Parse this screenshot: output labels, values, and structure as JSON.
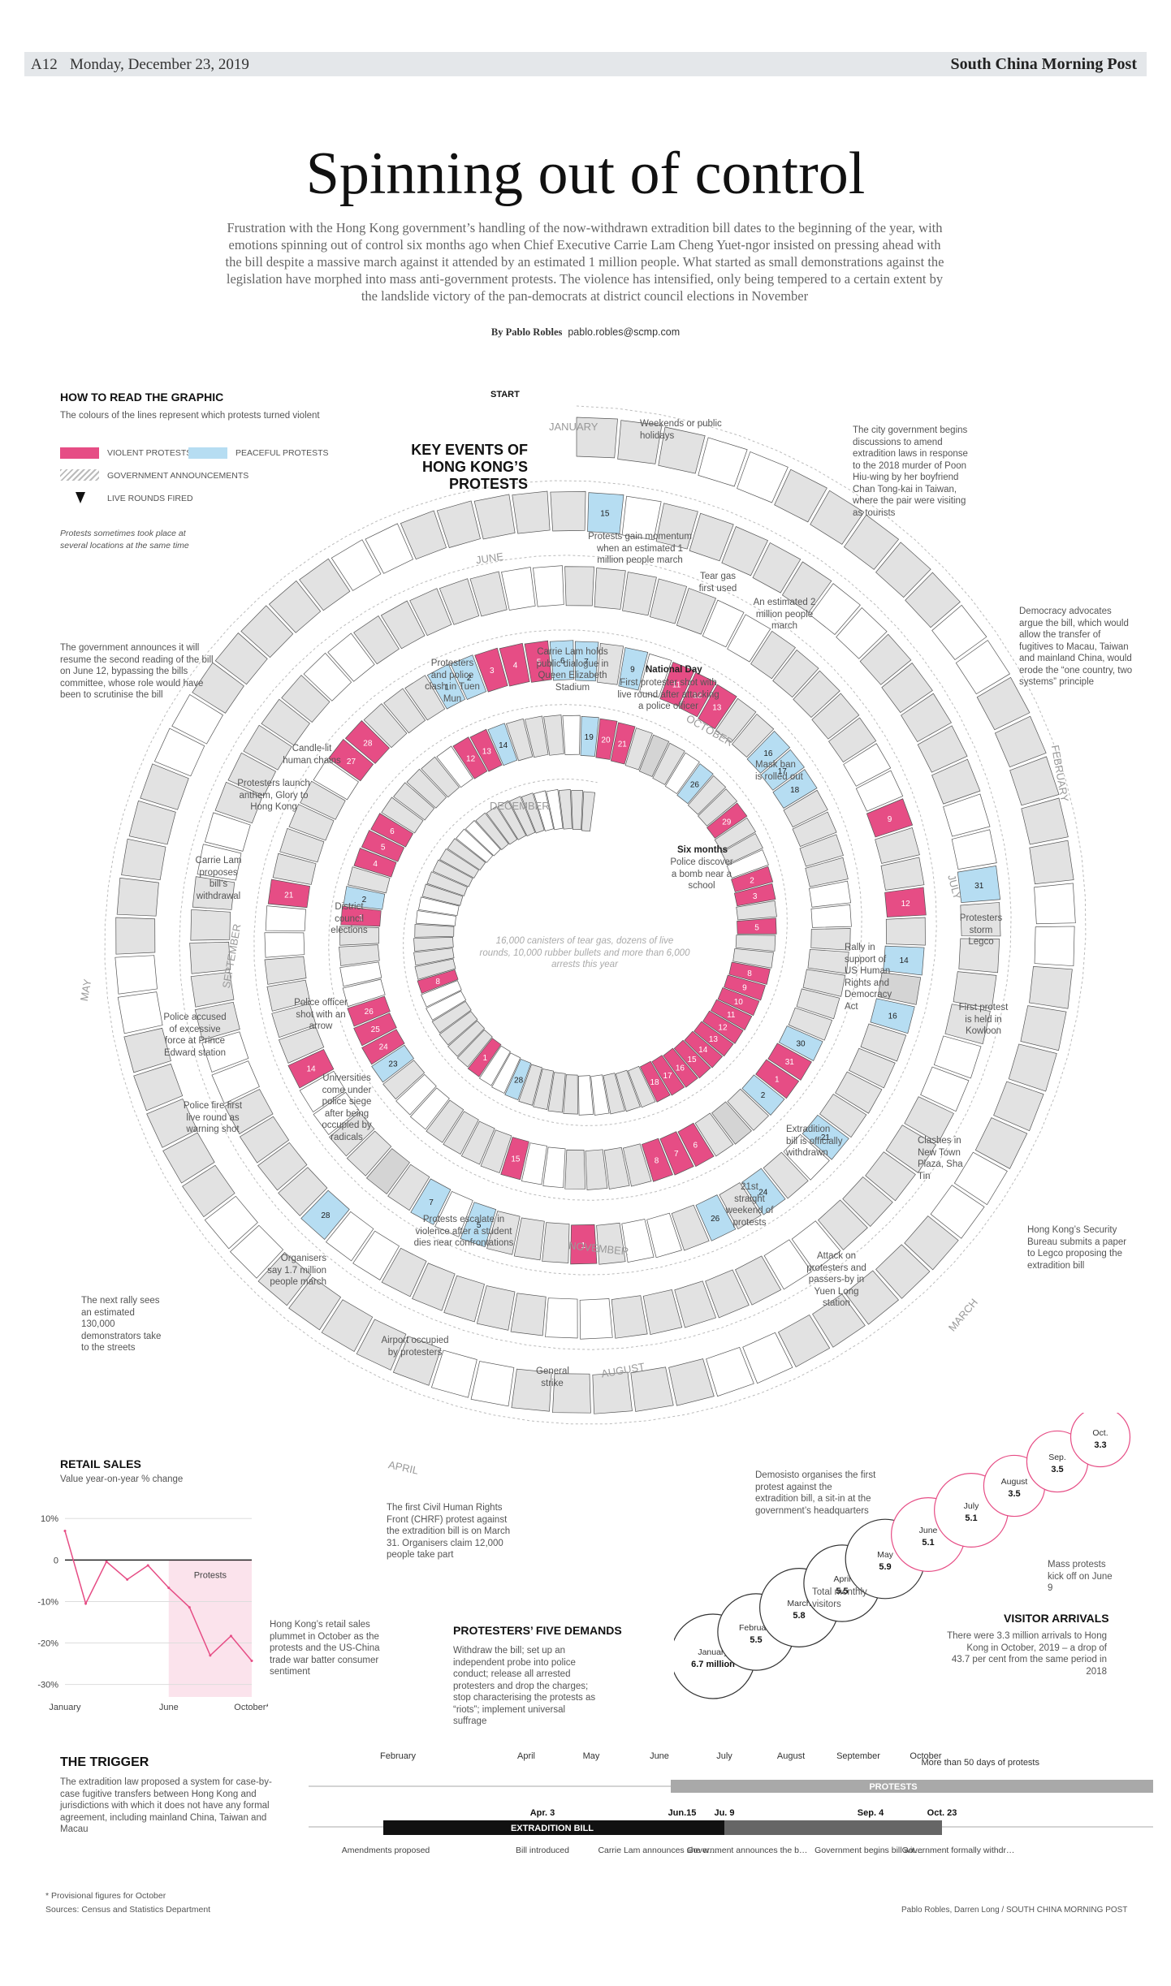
{
  "header": {
    "page": "A12",
    "date": "Monday, December 23, 2019",
    "brand": "South China Morning Post"
  },
  "title": "Spinning out of control",
  "intro": "Frustration with the Hong Kong government’s handling of the now-withdrawn extradition bill dates to the beginning of the year, with emotions spinning out of control six months ago when Chief Executive Carrie Lam Cheng Yuet-ngor insisted on pressing ahead with the bill despite a massive march against it attended by an estimated 1 million people. What started as small demonstrations against the legislation have morphed into mass anti-government protests. The violence has intensified, only being tempered to a certain extent by the landslide victory of the pan-democrats at district council elections in November",
  "byline": {
    "author": "By Pablo Robles",
    "email": "pablo.robles@scmp.com"
  },
  "legend": {
    "heading": "HOW TO READ THE GRAPHIC",
    "subheading": "The colours of the lines represent which protests turned violent",
    "violent": "VIOLENT PROTESTS",
    "peaceful": "PEACEFUL PROTESTS",
    "government": "GOVERNMENT ANNOUNCEMENTS",
    "live": "LIVE ROUNDS FIRED",
    "note": "Protests sometimes took place at several locations at the same time",
    "colors": {
      "violent": "#e64d85",
      "peaceful": "#b6ddf2",
      "day": "#e2e2e2",
      "weekend": "#ffffff"
    }
  },
  "spiral": {
    "start": "START",
    "key_title": "KEY EVENTS OF HONG KONG’S PROTESTS",
    "weekend_note": "Weekends or public holidays",
    "center_note": "16,000 canisters of tear gas, dozens of live rounds, 10,000 rubber bullets and more than 6,000 arrests this year",
    "months": [
      "JANUARY",
      "FEBRUARY",
      "MARCH",
      "APRIL",
      "MAY",
      "JUNE",
      "JULY",
      "AUGUST",
      "SEPTEMBER",
      "OCTOBER",
      "NOVEMBER",
      "DECEMBER"
    ],
    "annotations": {
      "a1": "The city government begins discussions to amend extradition laws in response to the 2018 murder of Poon Hiu-wing by her boyfriend Chan Tong-kai in Taiwan, where the pair were visiting as tourists",
      "a2": "Democracy advocates argue the bill, which would allow the transfer of fugitives to Macau, Taiwan and mainland China, would erode the “one country, two systems” principle",
      "a3": "Hong Kong’s Security Bureau submits a paper to Legco proposing the extradition bill",
      "a4": "Demosisto organises the first protest against the extradition bill, a sit-in at the government’s headquarters",
      "a5": "The first Civil Human Rights Front (CHRF) protest against the extradition bill is on March 31. Organisers claim 12,000 people take part",
      "a6": "The next rally sees an estimated 130,000 demonstrators take to the streets",
      "a7": "The government announces it will resume the second reading of the bill on June 12, bypassing the bills committee, whose role would have been to scrutinise the bill",
      "a8": "Protests gain momentum when an estimated 1 million people march",
      "a9": "Tear gas first used",
      "a10": "An estimated 2 million people march",
      "a11": "Protesters storm Legco",
      "a12": "First protest is held in Kowloon",
      "a13": "Clashes in New Town Plaza, Sha Tin",
      "a14": "Attack on protesters and passers-by in Yuen Long station",
      "a15": "General strike",
      "a16": "Airport occupied by protesters",
      "a17": "Organisers say 1.7 million people march",
      "a18": "Police fire first live round as warning shot",
      "a19": "Police accused of excessive force at Prince Edward station",
      "a20": "Carrie Lam proposes bill’s withdrawal",
      "a21": "Protesters launch anthem, Glory to Hong Kong",
      "a22": "Candle-lit human chains",
      "a23": "Protesters and police clash in Tuen Mun",
      "a24": "Carrie Lam holds public dialogue in Queen Elizabeth Stadium",
      "a25_title": "National Day",
      "a25": "First protester shot with live round after attacking a police officer",
      "a26": "Mask ban is rolled out",
      "a27": "Rally in support of US Human Rights and Democracy Act",
      "a28": "Extradition bill is officially withdrawn",
      "a29": "21st straight weekend of protests",
      "a30": "Protests escalate in violence after a student dies near confrontations",
      "a31": "Universities come under police siege after being occupied by radicals",
      "a32": "Police officer shot with an arrow",
      "a33": "District council elections",
      "a34_title": "Six months",
      "a34": "Police discover a bomb near a school"
    }
  },
  "retail": {
    "heading": "RETAIL SALES",
    "subheading": "Value year-on-year % change",
    "note": "Hong Kong’s retail sales plummet in October as the protests and the US-China trade war batter consumer sentiment",
    "protests_label": "Protests"
  },
  "demands": {
    "heading": "PROTESTERS’ FIVE DEMANDS",
    "text": "Withdraw the bill; set up an independent probe into police conduct; release all arrested protesters and drop the charges; stop characterising the protests as “riots”; implement universal suffrage"
  },
  "visitors": {
    "heading": "VISITOR ARRIVALS",
    "text": "There were 3.3 million arrivals to Hong Kong in October, 2019 – a drop of 43.7 per cent from the same period in 2018",
    "total_label": "Total monthly visitors",
    "mass_label": "Mass protests kick off on June 9",
    "months": [
      "January",
      "February",
      "March",
      "April",
      "May",
      "June",
      "July",
      "August",
      "Sep.",
      "Oct."
    ],
    "values_text": [
      "6.7 million",
      "5.5",
      "5.8",
      "5.5",
      "5.9",
      "5.1",
      "5.1",
      "3.5",
      "3.5",
      "3.3"
    ]
  },
  "trigger": {
    "heading": "THE TRIGGER",
    "text": "The extradition law proposed a system for case-by-case fugitive transfers between Hong Kong and jurisdictions with which it does not have any formal agreement, including mainland China, Taiwan and Macau",
    "months": [
      "February",
      "April",
      "May",
      "June",
      "July",
      "August",
      "September",
      "October"
    ],
    "protests_bar": "PROTESTS",
    "bill_bar": "EXTRADITION BILL",
    "more_than": "More than 50 days of protests",
    "dates": [
      "Apr. 3",
      "Jun.15",
      "Ju. 9",
      "Sep. 4",
      "Oct. 23"
    ],
    "events": [
      "Amendments proposed",
      "Bill introduced",
      "Carrie Lam announces she will suspend the bill",
      "Government announces the bill is dead",
      "Government begins bill withdrawal process",
      "Government formally withdraws the bill"
    ]
  },
  "footer": {
    "provisional": "* Provisional figures for October",
    "sources": "Sources: Census and Statistics Department",
    "credit": "Pablo Robles, Darren Long / SOUTH CHINA MORNING POST"
  },
  "chart_data": [
    {
      "type": "line",
      "title": "RETAIL SALES",
      "subtitle": "Value year-on-year % change",
      "x": [
        "January",
        "February",
        "March",
        "April",
        "May",
        "June",
        "July",
        "August",
        "September",
        "October*"
      ],
      "x_tick_labels": [
        "January",
        "June",
        "October*"
      ],
      "y_tick_labels": [
        "10%",
        "0",
        "-10%",
        "-20%",
        "-30%"
      ],
      "series": [
        {
          "values": [
            7.0,
            -10.5,
            -0.4,
            -4.7,
            -1.3,
            -6.7,
            -11.4,
            -23.0,
            -18.3,
            -24.3
          ]
        }
      ],
      "ylim": [
        -33,
        12
      ],
      "shaded_region": {
        "from": "June",
        "to": "October*",
        "label": "Protests"
      }
    },
    {
      "type": "bubble",
      "title": "VISITOR ARRIVALS",
      "unit": "million",
      "categories": [
        "January",
        "February",
        "March",
        "April",
        "May",
        "June",
        "July",
        "August",
        "Sep.",
        "Oct."
      ],
      "values": [
        6.7,
        5.5,
        5.8,
        5.5,
        5.9,
        5.1,
        5.1,
        3.5,
        3.5,
        3.3
      ]
    },
    {
      "type": "spiral-calendar",
      "year": 2019,
      "start": "January 1",
      "violent_days": {
        "6": [
          9,
          12
        ],
        "7": [
          1,
          14,
          21,
          27,
          28
        ],
        "8": [
          3,
          4,
          5,
          11,
          12,
          13,
          31
        ],
        "9": [
          1,
          6,
          7,
          8,
          15,
          24,
          25,
          26
        ],
        "10": [
          1,
          4,
          5,
          6,
          12,
          13,
          20,
          21,
          29
        ],
        "11": [
          2,
          3,
          5,
          8,
          9,
          10,
          11,
          12,
          13,
          14,
          15,
          16,
          17,
          18
        ],
        "12": [
          1,
          8
        ]
      },
      "peaceful_days": {
        "3": [
          15,
          31
        ],
        "4": [
          28
        ],
        "6": [
          14,
          16,
          21,
          24,
          26
        ],
        "7": [
          5,
          7
        ],
        "8": [
          1,
          2,
          6,
          7,
          9,
          16,
          17,
          18,
          30
        ],
        "9": [
          2,
          23
        ],
        "10": [
          2,
          14,
          19,
          26
        ],
        "11": [
          9,
          28
        ]
      },
      "government_days": {
        "7": [
          9
        ],
        "9": [
          4,
          23
        ],
        "10": [
          23
        ],
        "6": [
          15,
          26
        ]
      },
      "live_round_days": [
        "2019-08-25",
        "2019-10-01",
        "2019-10-04",
        "2019-11-11"
      ]
    }
  ]
}
